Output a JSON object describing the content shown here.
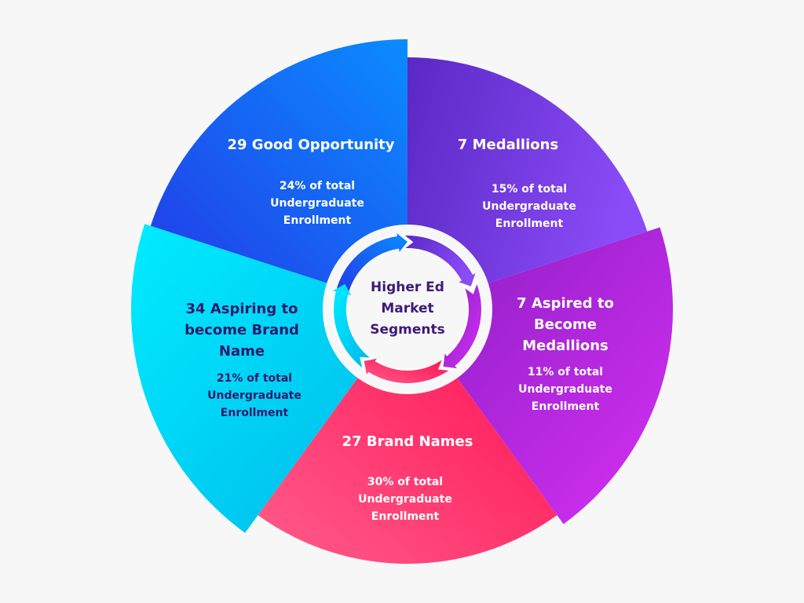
{
  "center": {
    "lines": [
      "Higher Ed",
      "Market",
      "Segments"
    ],
    "color": "#3d1a78"
  },
  "segments": [
    {
      "id": "good-opportunity",
      "title": [
        "29 Good Opportunity"
      ],
      "subtitle": [
        "24% of total",
        "Undergraduate",
        "Enrollment"
      ],
      "colors": [
        "#0a8cff",
        "#2438e6"
      ],
      "text_color": "#ffffff"
    },
    {
      "id": "medallions",
      "title": [
        "7 Medallions"
      ],
      "subtitle": [
        "15% of total",
        "Undergraduate",
        "Enrollment"
      ],
      "colors": [
        "#5a28c4",
        "#8a4cf7"
      ],
      "text_color": "#ffffff"
    },
    {
      "id": "aspired-to-become-medallions",
      "title": [
        "7 Aspired to",
        "Become",
        "Medallions"
      ],
      "subtitle": [
        "11% of total",
        "Undergraduate",
        "Enrollment"
      ],
      "colors": [
        "#8a1ec4",
        "#d530f3"
      ],
      "text_color": "#ffffff"
    },
    {
      "id": "brand-names",
      "title": [
        "27 Brand Names"
      ],
      "subtitle": [
        "30% of total",
        "Undergraduate",
        "Enrollment"
      ],
      "colors": [
        "#ff0f52",
        "#ff5c8a"
      ],
      "text_color": "#ffffff"
    },
    {
      "id": "aspiring-to-become-brand-name",
      "title": [
        "34 Aspiring to",
        "become Brand",
        "Name"
      ],
      "subtitle": [
        "21% of total",
        "Undergraduate",
        "Enrollment"
      ],
      "colors": [
        "#00b8ea",
        "#00ecff"
      ],
      "text_color": "#2b1b6b"
    }
  ]
}
